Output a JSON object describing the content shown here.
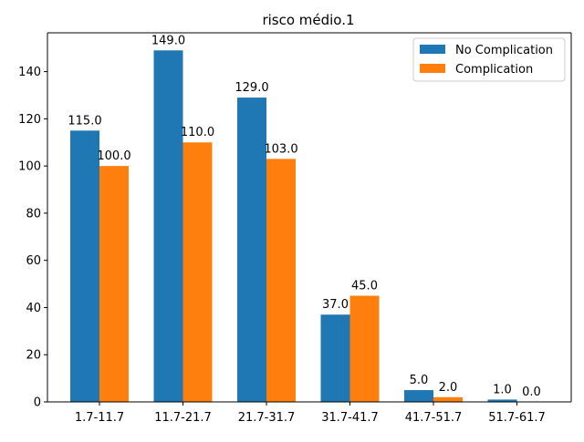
{
  "chart_data": {
    "type": "bar",
    "title": "risco médio.1",
    "xlabel": "",
    "ylabel": "",
    "categories": [
      "1.7-11.7",
      "11.7-21.7",
      "21.7-31.7",
      "31.7-41.7",
      "41.7-51.7",
      "51.7-61.7"
    ],
    "series": [
      {
        "name": "No Complication",
        "color": "#1f77b4",
        "values": [
          115.0,
          149.0,
          129.0,
          37.0,
          5.0,
          1.0
        ],
        "labels": [
          "115.0",
          "149.0",
          "129.0",
          "37.0",
          "5.0",
          "1.0"
        ]
      },
      {
        "name": "Complication",
        "color": "#ff7f0e",
        "values": [
          100.0,
          110.0,
          103.0,
          45.0,
          2.0,
          0.0
        ],
        "labels": [
          "100.0",
          "110.0",
          "103.0",
          "45.0",
          "2.0",
          "0.0"
        ]
      }
    ],
    "yticks": [
      0,
      20,
      40,
      60,
      80,
      100,
      120,
      140
    ],
    "ylim": [
      0,
      156.45
    ],
    "grid": false,
    "legend_position": "top-right"
  }
}
